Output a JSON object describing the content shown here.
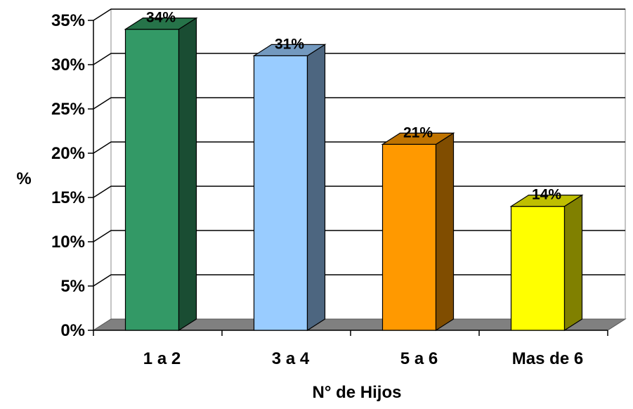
{
  "chart_data": {
    "type": "bar",
    "title": "",
    "xlabel": "N° de Hijos",
    "ylabel": "%",
    "categories": [
      "1 a 2",
      "3 a 4",
      "5 a 6",
      "Mas de 6"
    ],
    "values": [
      34,
      31,
      21,
      14
    ],
    "data_labels": [
      "34%",
      "31%",
      "21%",
      "14%"
    ],
    "yticks": [
      0,
      5,
      10,
      15,
      20,
      25,
      30,
      35
    ],
    "ytick_labels": [
      "0%",
      "5%",
      "10%",
      "15%",
      "20%",
      "25%",
      "30%",
      "35%"
    ],
    "ylim": [
      0,
      35
    ],
    "grid": true,
    "three_d": true,
    "colors": {
      "front": [
        "#339966",
        "#99ccff",
        "#ff9900",
        "#ffff00"
      ],
      "side": [
        "#1a4d33",
        "#4d6680",
        "#804d00",
        "#808000"
      ],
      "top": [
        "#267349",
        "#7399bf",
        "#bf7300",
        "#bfbf00"
      ],
      "floor": "#808080",
      "grid": "#000000"
    }
  }
}
